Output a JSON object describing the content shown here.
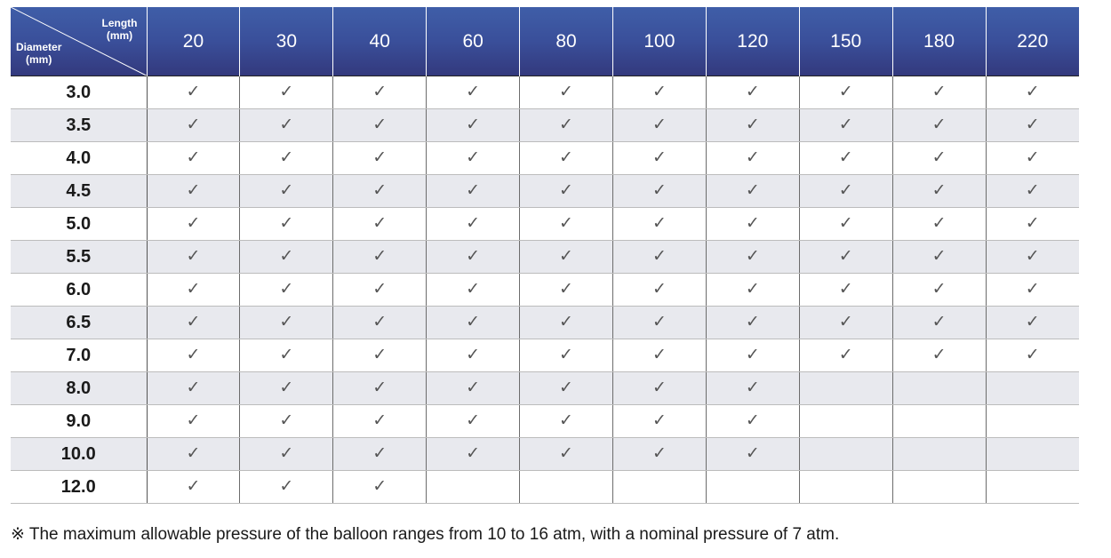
{
  "header": {
    "length_label": "Length",
    "length_unit": "(mm)",
    "diameter_label": "Diameter",
    "diameter_unit": "(mm)",
    "lengths": [
      "20",
      "30",
      "40",
      "60",
      "80",
      "100",
      "120",
      "150",
      "180",
      "220"
    ]
  },
  "check_symbol": "✓",
  "rows": [
    {
      "diameter": "3.0",
      "available": [
        true,
        true,
        true,
        true,
        true,
        true,
        true,
        true,
        true,
        true
      ]
    },
    {
      "diameter": "3.5",
      "available": [
        true,
        true,
        true,
        true,
        true,
        true,
        true,
        true,
        true,
        true
      ]
    },
    {
      "diameter": "4.0",
      "available": [
        true,
        true,
        true,
        true,
        true,
        true,
        true,
        true,
        true,
        true
      ]
    },
    {
      "diameter": "4.5",
      "available": [
        true,
        true,
        true,
        true,
        true,
        true,
        true,
        true,
        true,
        true
      ]
    },
    {
      "diameter": "5.0",
      "available": [
        true,
        true,
        true,
        true,
        true,
        true,
        true,
        true,
        true,
        true
      ]
    },
    {
      "diameter": "5.5",
      "available": [
        true,
        true,
        true,
        true,
        true,
        true,
        true,
        true,
        true,
        true
      ]
    },
    {
      "diameter": "6.0",
      "available": [
        true,
        true,
        true,
        true,
        true,
        true,
        true,
        true,
        true,
        true
      ]
    },
    {
      "diameter": "6.5",
      "available": [
        true,
        true,
        true,
        true,
        true,
        true,
        true,
        true,
        true,
        true
      ]
    },
    {
      "diameter": "7.0",
      "available": [
        true,
        true,
        true,
        true,
        true,
        true,
        true,
        true,
        true,
        true
      ]
    },
    {
      "diameter": "8.0",
      "available": [
        true,
        true,
        true,
        true,
        true,
        true,
        true,
        false,
        false,
        false
      ]
    },
    {
      "diameter": "9.0",
      "available": [
        true,
        true,
        true,
        true,
        true,
        true,
        true,
        false,
        false,
        false
      ]
    },
    {
      "diameter": "10.0",
      "available": [
        true,
        true,
        true,
        true,
        true,
        true,
        true,
        false,
        false,
        false
      ]
    },
    {
      "diameter": "12.0",
      "available": [
        true,
        true,
        true,
        false,
        false,
        false,
        false,
        false,
        false,
        false
      ]
    }
  ],
  "footnote": "※ The maximum allowable pressure of the balloon ranges from 10 to 16 atm, with a nominal pressure of 7 atm.",
  "colors": {
    "header_top": "#3f5ea8",
    "header_bottom": "#33397d",
    "stripe": "#e8e9ee",
    "check": "#555555"
  }
}
